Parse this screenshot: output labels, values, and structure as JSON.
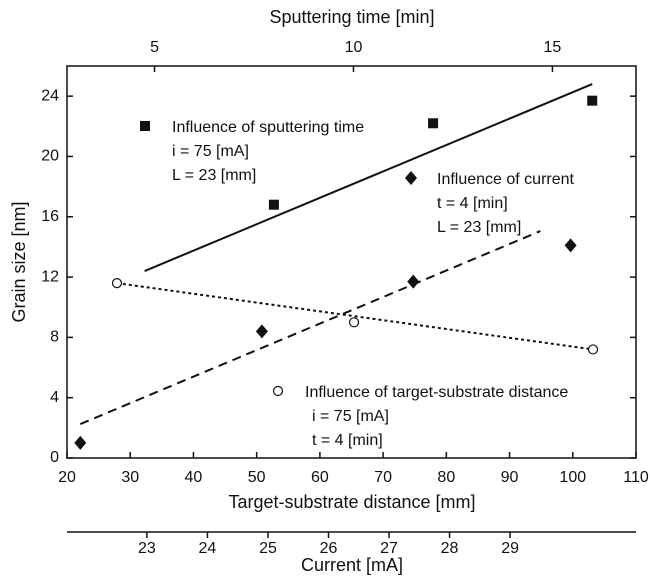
{
  "chart_data": {
    "type": "scatter",
    "ylabel": "Grain size [nm]",
    "ylim": [
      0,
      26
    ],
    "yticks": [
      0,
      4,
      8,
      12,
      16,
      20,
      24
    ],
    "xlabel": "Target-substrate distance [mm]",
    "xlim": [
      20,
      110
    ],
    "xticks": [
      20,
      30,
      40,
      50,
      60,
      70,
      80,
      90,
      100,
      110
    ],
    "x2label": "Sputtering time [min]",
    "x2lim": [
      2.8,
      17.1
    ],
    "x2ticks": [
      5,
      10,
      15
    ],
    "x3label": "Current [mA]",
    "x3lim": [
      21.68,
      31.08
    ],
    "x3ticks": [
      23,
      24,
      25,
      26,
      27,
      28,
      29
    ],
    "series": [
      {
        "name": "Influence of sputtering time",
        "details": [
          "i = 75 [mA]",
          "L = 23 [mm]"
        ],
        "marker": "square",
        "xaxis": "x2",
        "x": [
          8,
          12,
          16
        ],
        "values": [
          16.8,
          22.2,
          23.7
        ],
        "fit": {
          "style": "solid",
          "x": [
            4.75,
            16
          ],
          "values": [
            12.4,
            24.8
          ]
        }
      },
      {
        "name": "Influence of current",
        "details": [
          "t = 4 [min]",
          "L = 23 [mm]"
        ],
        "marker": "diamond",
        "xaxis": "x3",
        "x": [
          21.9,
          24.9,
          27.4,
          30.0
        ],
        "values": [
          1.0,
          8.4,
          11.7,
          14.1
        ],
        "fit": {
          "style": "dashed",
          "x": [
            21.9,
            29.5
          ],
          "values": [
            2.25,
            15.05
          ]
        }
      },
      {
        "name": "Influence of target-substrate distance",
        "details": [
          "i = 75 [mA]",
          "t = 4 [min]"
        ],
        "marker": "circle",
        "xaxis": "x",
        "x": [
          27.9,
          65.4,
          103.2
        ],
        "values": [
          11.6,
          9.0,
          7.2
        ],
        "fit": {
          "style": "dotted",
          "x": [
            27.9,
            103.2
          ],
          "values": [
            11.6,
            7.2
          ]
        }
      }
    ]
  }
}
